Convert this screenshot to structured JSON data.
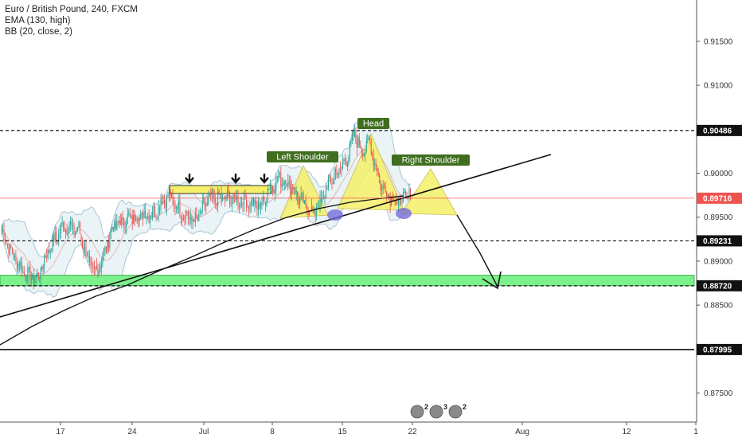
{
  "legend": {
    "symbol": "Euro / British Pound, 240, FXCM",
    "ema": "EMA (130, high)",
    "bb": "BB (20, close, 2)"
  },
  "colors": {
    "up_candle": "#26a69a",
    "down_candle": "#ef5350",
    "bb_band": "#a9c6d6",
    "bb_fill": "#e8f2f5",
    "pattern_fill": "#f5f06a",
    "support_zone": "#7cf08a",
    "shoulder_marker": "#6e64d8",
    "label_bg": "#3f6e1f",
    "current_price_line": "#ef5350"
  },
  "annotations": {
    "head": "Head",
    "left_shoulder": "Left Shoulder",
    "right_shoulder": "Right Shoulder",
    "markers": [
      "2",
      "3",
      "2"
    ]
  },
  "chart_data": {
    "type": "candlestick",
    "symbol": "Euro / British Pound",
    "timeframe": "240",
    "source": "FXCM",
    "x_ticks": [
      "17",
      "24",
      "Jul",
      "8",
      "15",
      "22",
      "Aug",
      "12",
      "1"
    ],
    "y_ticks": [
      0.915,
      0.91,
      0.905,
      0.9,
      0.895,
      0.89,
      0.885,
      0.88,
      0.875
    ],
    "y_tick_labels": [
      "0.91500",
      "0.91000",
      "0.90500",
      "0.90000",
      "0.89500",
      "0.89000",
      "0.88500",
      "0.88000",
      "0.87500"
    ],
    "ylim": [
      0.8717,
      0.9197
    ],
    "price_tags": {
      "head_level": "0.90486",
      "current_price": "0.89716",
      "neckline_level": "0.89231",
      "support_level": "0.88720",
      "low_level": "0.87995"
    },
    "levels": {
      "head_level": 0.90486,
      "current_price": 0.89716,
      "neckline_level": 0.89231,
      "support_level": 0.8872,
      "support_zone": [
        0.8872,
        0.8884
      ],
      "low_level": 0.87995
    },
    "close_anchors": [
      [
        0,
        0.8935
      ],
      [
        10,
        0.8905
      ],
      [
        20,
        0.8885
      ],
      [
        30,
        0.888
      ],
      [
        40,
        0.8915
      ],
      [
        52,
        0.894
      ],
      [
        65,
        0.8935
      ],
      [
        72,
        0.8905
      ],
      [
        78,
        0.8885
      ],
      [
        84,
        0.89
      ],
      [
        94,
        0.894
      ],
      [
        110,
        0.895
      ],
      [
        128,
        0.8955
      ],
      [
        140,
        0.8975
      ],
      [
        152,
        0.8955
      ],
      [
        163,
        0.8945
      ],
      [
        174,
        0.897
      ],
      [
        188,
        0.8972
      ],
      [
        205,
        0.8968
      ],
      [
        218,
        0.8962
      ],
      [
        224,
        0.898
      ],
      [
        234,
        0.8995
      ],
      [
        244,
        0.8985
      ],
      [
        254,
        0.8965
      ],
      [
        262,
        0.8955
      ],
      [
        268,
        0.8965
      ],
      [
        276,
        0.899
      ],
      [
        290,
        0.9015
      ],
      [
        297,
        0.9045
      ],
      [
        303,
        0.9025
      ],
      [
        310,
        0.9035
      ],
      [
        318,
        0.899
      ],
      [
        326,
        0.8975
      ],
      [
        334,
        0.8965
      ],
      [
        340,
        0.8975
      ],
      [
        344,
        0.8972
      ]
    ]
  }
}
